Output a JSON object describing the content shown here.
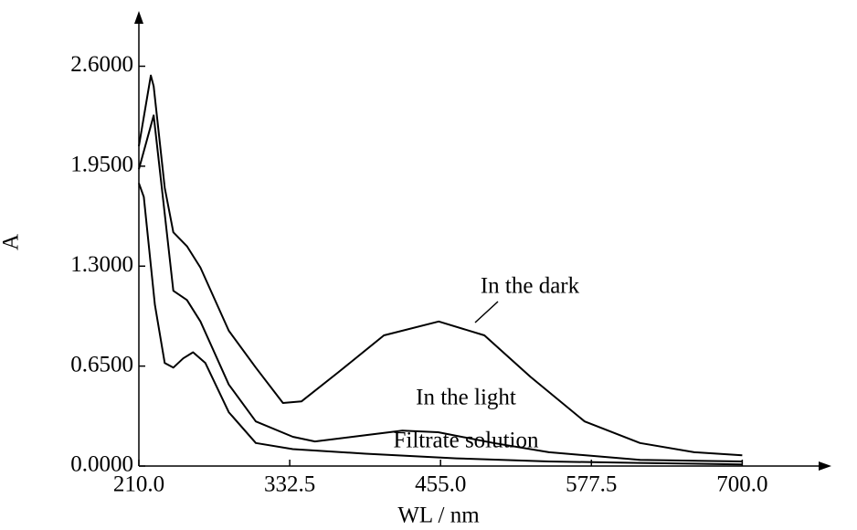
{
  "chart_data": {
    "type": "line",
    "xlabel": "WL / nm",
    "ylabel": "A",
    "xlim": [
      210,
      765
    ],
    "ylim": [
      0,
      2.9
    ],
    "xticks": [
      {
        "value": 210,
        "label": "210.0"
      },
      {
        "value": 332.5,
        "label": "332.5"
      },
      {
        "value": 455,
        "label": "455.0"
      },
      {
        "value": 577.5,
        "label": "577.5"
      },
      {
        "value": 700,
        "label": "700.0"
      }
    ],
    "yticks": [
      {
        "value": 0,
        "label": "0.0000"
      },
      {
        "value": 0.65,
        "label": "0.6500"
      },
      {
        "value": 1.3,
        "label": "1.3000"
      },
      {
        "value": 1.95,
        "label": "1.9500"
      },
      {
        "value": 2.6,
        "label": "2.6000"
      }
    ],
    "annotations": [
      "In the dark",
      "In the light",
      "Filtrate solution"
    ],
    "series": [
      {
        "name": "In the dark",
        "color": "#000000",
        "x": [
          210,
          219.7,
          222,
          231,
          238,
          249,
          260,
          283,
          305,
          327,
          342,
          372,
          409,
          453.5,
          490.6,
          528,
          572,
          617,
          661,
          700
        ],
        "values": [
          2.08,
          2.54,
          2.47,
          1.81,
          1.52,
          1.43,
          1.29,
          0.88,
          0.64,
          0.41,
          0.42,
          0.61,
          0.85,
          0.94,
          0.85,
          0.58,
          0.29,
          0.15,
          0.09,
          0.07
        ]
      },
      {
        "name": "In the light",
        "color": "#000000",
        "x": [
          210,
          222,
          231,
          238,
          249,
          260,
          283,
          305,
          335,
          353,
          394,
          424,
          453,
          498,
          543,
          617,
          700
        ],
        "values": [
          1.93,
          2.28,
          1.64,
          1.14,
          1.08,
          0.94,
          0.53,
          0.29,
          0.19,
          0.16,
          0.2,
          0.23,
          0.22,
          0.15,
          0.09,
          0.04,
          0.03
        ]
      },
      {
        "name": "Filtrate solution",
        "color": "#000000",
        "x": [
          210,
          214,
          223,
          231,
          238,
          246,
          254,
          264,
          283,
          305,
          335,
          394,
          468,
          543,
          617,
          700
        ],
        "values": [
          1.84,
          1.75,
          1.05,
          0.67,
          0.64,
          0.7,
          0.74,
          0.67,
          0.35,
          0.15,
          0.11,
          0.08,
          0.05,
          0.03,
          0.02,
          0.01
        ]
      }
    ]
  }
}
